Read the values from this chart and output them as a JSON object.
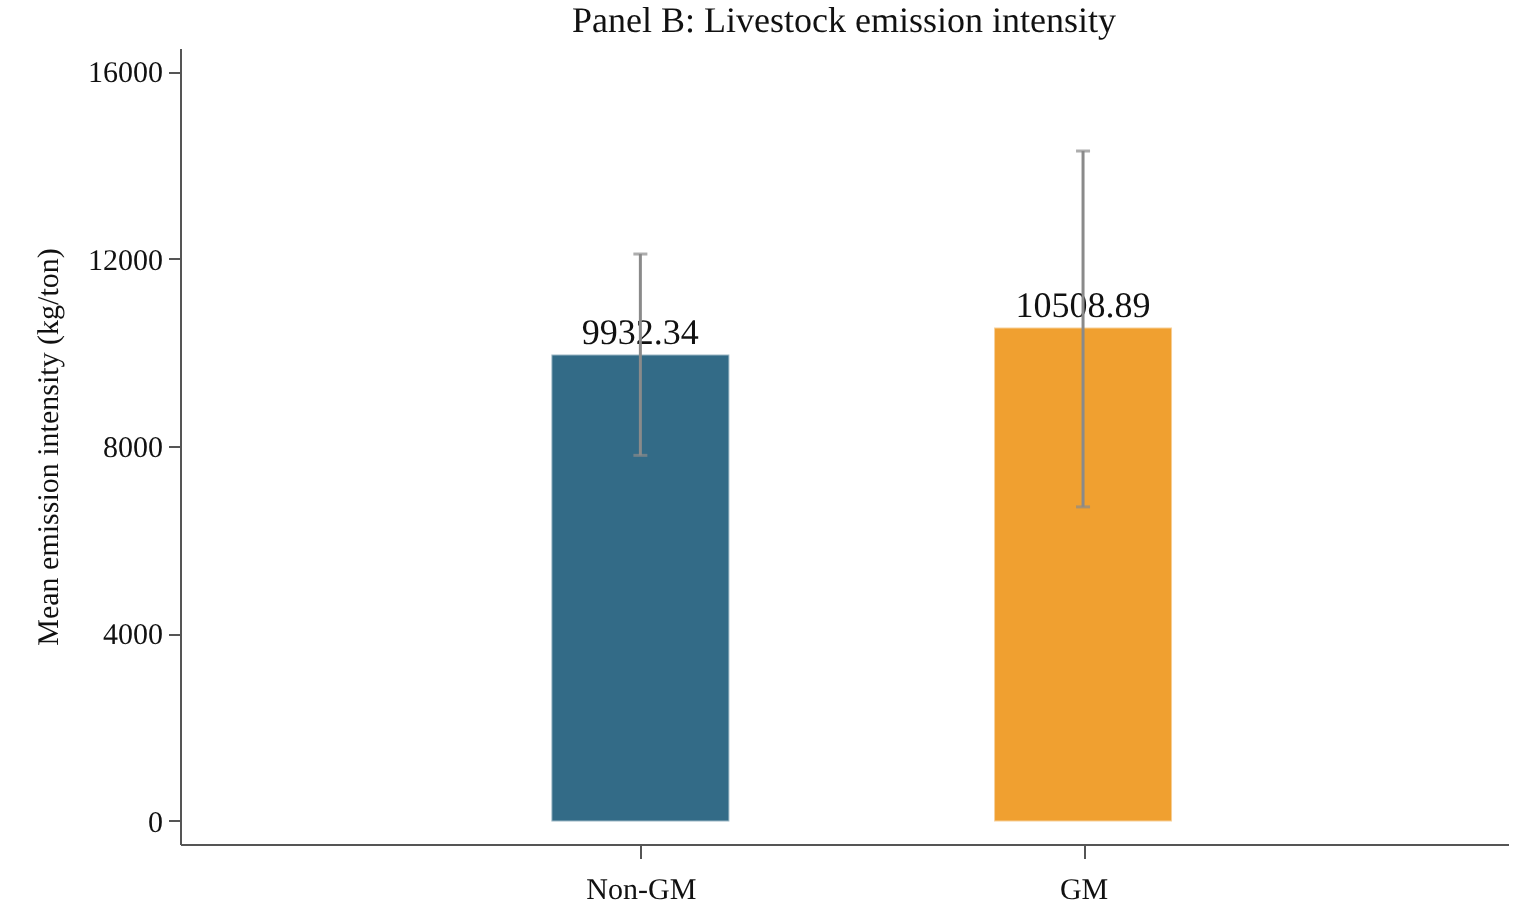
{
  "chart_data": {
    "type": "bar",
    "title": "Panel B: Livestock emission intensity",
    "ylabel": "Mean emission intensity (kg/ton)",
    "categories": [
      "Non-GM",
      "GM"
    ],
    "values": [
      9932.34,
      10508.89
    ],
    "colors": [
      "#336b87",
      "#f0a030"
    ],
    "errors": [
      [
        7800,
        12100
      ],
      [
        6700,
        14300
      ]
    ],
    "ylim": [
      -500,
      16500
    ],
    "yticks": [
      0,
      4000,
      8000,
      12000,
      16000
    ],
    "grid": false,
    "data_labels": true
  }
}
